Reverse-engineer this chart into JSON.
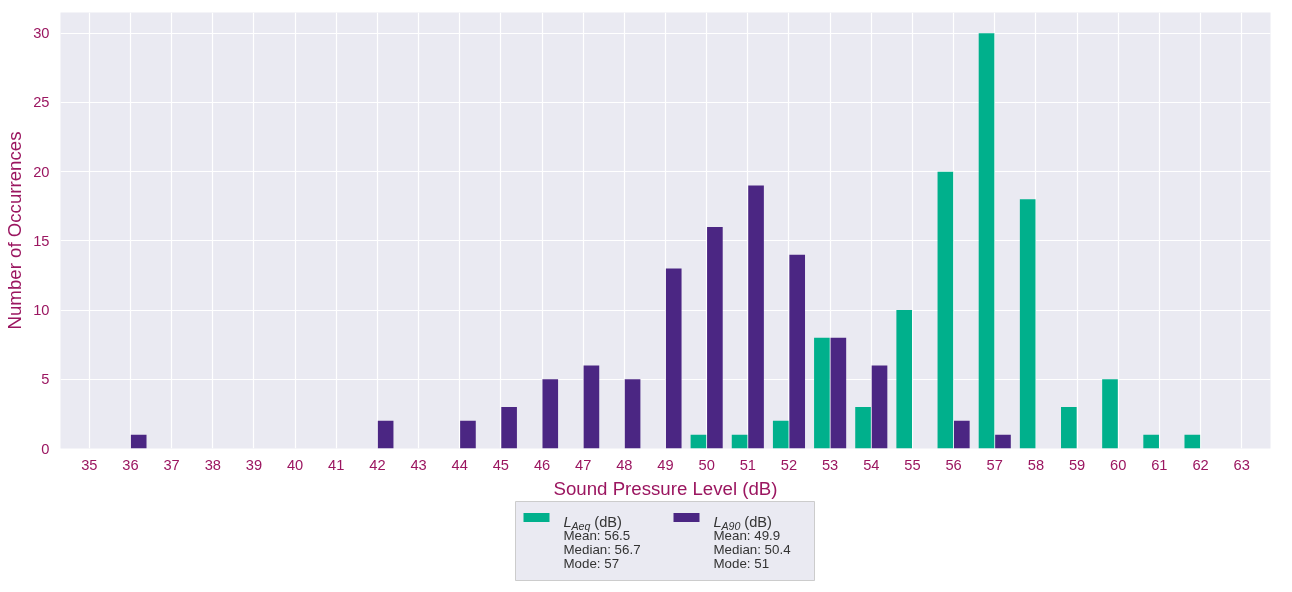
{
  "chart_data": {
    "type": "bar",
    "xlabel": "Sound Pressure Level (dB)",
    "ylabel": "Number of Occurrences",
    "categories": [
      "35",
      "36",
      "37",
      "38",
      "39",
      "40",
      "41",
      "42",
      "43",
      "44",
      "45",
      "46",
      "47",
      "48",
      "49",
      "50",
      "51",
      "52",
      "53",
      "54",
      "55",
      "56",
      "57",
      "58",
      "59",
      "60",
      "61",
      "62",
      "63"
    ],
    "series": [
      {
        "name": "L$_{Aeq}$ (dB)",
        "color": "#00b08c",
        "values": [
          0,
          0,
          0,
          0,
          0,
          0,
          0,
          0,
          0,
          0,
          0,
          0,
          0,
          0,
          0,
          1,
          1,
          2,
          8,
          3,
          10,
          20,
          30,
          18,
          3,
          5,
          1,
          1,
          0
        ]
      },
      {
        "name": "L$_{A90}$ (dB)",
        "color": "#4b2683",
        "values": [
          0,
          1,
          0,
          0,
          0,
          0,
          0,
          2,
          0,
          2,
          3,
          5,
          6,
          5,
          13,
          16,
          19,
          14,
          8,
          6,
          0,
          2,
          1,
          0,
          0,
          0,
          0,
          0,
          0
        ]
      }
    ],
    "annotations": [
      "Mean: 56.5\nMedian: 56.7\nMode: 57",
      "Mean: 49.9\nMedian: 50.4\nMode: 51"
    ],
    "ylim": [
      0,
      31.5
    ],
    "yticks": [
      0,
      5,
      10,
      15,
      20,
      25,
      30
    ],
    "grid": true,
    "legend": "bottom"
  }
}
